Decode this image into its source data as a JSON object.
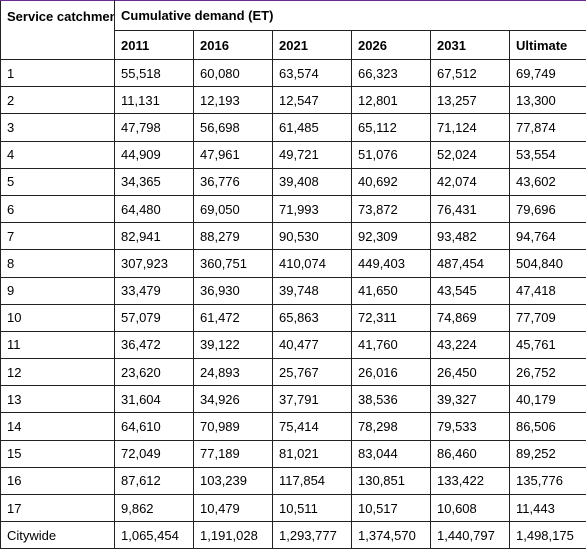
{
  "table": {
    "catchment_header": "Service catchment",
    "demand_header": "Cumulative demand (ET)",
    "years": [
      "2011",
      "2016",
      "2021",
      "2026",
      "2031",
      "Ultimate"
    ],
    "rows": [
      [
        "1",
        "55,518",
        "60,080",
        "63,574",
        "66,323",
        "67,512",
        "69,749"
      ],
      [
        "2",
        "11,131",
        "12,193",
        "12,547",
        "12,801",
        "13,257",
        "13,300"
      ],
      [
        "3",
        "47,798",
        "56,698",
        "61,485",
        "65,112",
        "71,124",
        "77,874"
      ],
      [
        "4",
        "44,909",
        "47,961",
        "49,721",
        "51,076",
        "52,024",
        "53,554"
      ],
      [
        "5",
        "34,365",
        "36,776",
        "39,408",
        "40,692",
        "42,074",
        "43,602"
      ],
      [
        "6",
        "64,480",
        "69,050",
        "71,993",
        "73,872",
        "76,431",
        "79,696"
      ],
      [
        "7",
        "82,941",
        "88,279",
        "90,530",
        "92,309",
        "93,482",
        "94,764"
      ],
      [
        "8",
        "307,923",
        "360,751",
        "410,074",
        "449,403",
        "487,454",
        "504,840"
      ],
      [
        "9",
        "33,479",
        "36,930",
        "39,748",
        "41,650",
        "43,545",
        "47,418"
      ],
      [
        "10",
        "57,079",
        "61,472",
        "65,863",
        "72,311",
        "74,869",
        "77,709"
      ],
      [
        "11",
        "36,472",
        "39,122",
        "40,477",
        "41,760",
        "43,224",
        "45,761"
      ],
      [
        "12",
        "23,620",
        "24,893",
        "25,767",
        "26,016",
        "26,450",
        "26,752"
      ],
      [
        "13",
        "31,604",
        "34,926",
        "37,791",
        "38,536",
        "39,327",
        "40,179"
      ],
      [
        "14",
        "64,610",
        "70,989",
        "75,414",
        "78,298",
        "79,533",
        "86,506"
      ],
      [
        "15",
        "72,049",
        "77,189",
        "81,021",
        "83,044",
        "86,460",
        "89,252"
      ],
      [
        "16",
        "87,612",
        "103,239",
        "117,854",
        "130,851",
        "133,422",
        "135,776"
      ],
      [
        "17",
        "9,862",
        "10,479",
        "10,511",
        "10,517",
        "10,608",
        "11,443"
      ],
      [
        "Citywide",
        "1,065,454",
        "1,191,028",
        "1,293,777",
        "1,374,570",
        "1,440,797",
        "1,498,175"
      ]
    ]
  }
}
